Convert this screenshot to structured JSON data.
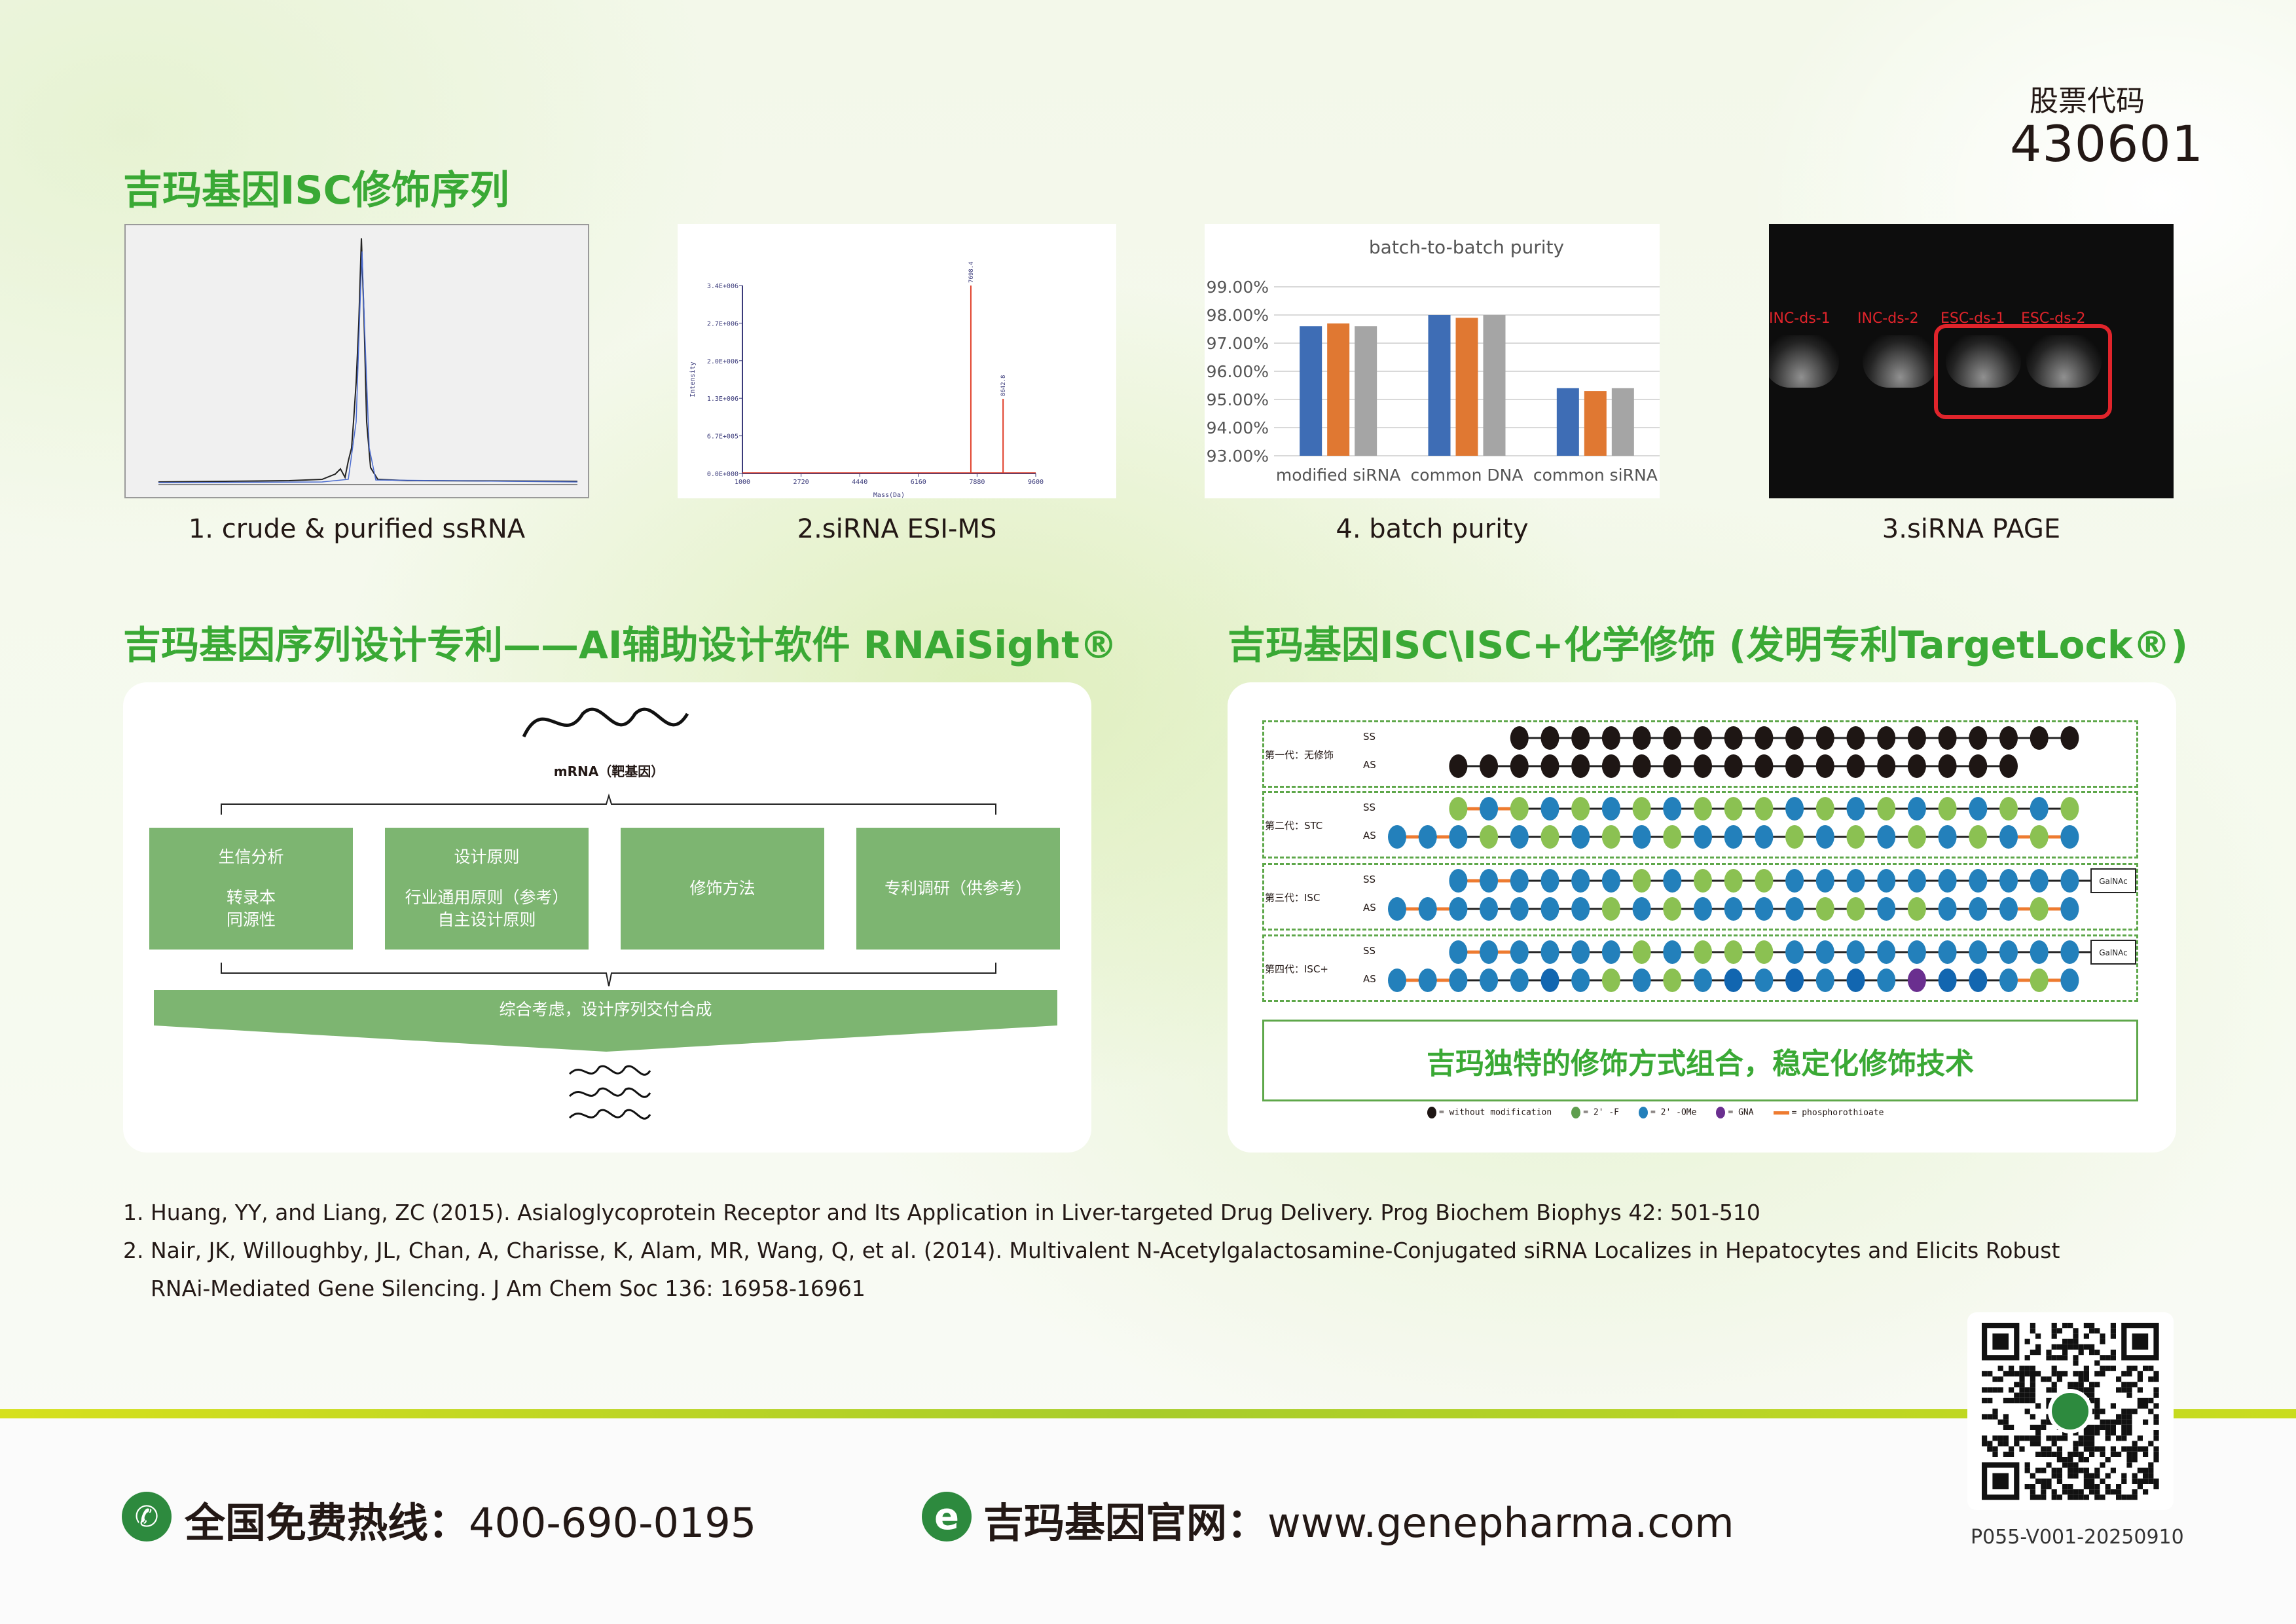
{
  "stock": {
    "label": "股票代码",
    "code": "430601"
  },
  "section1": {
    "title": "吉玛基因ISC修饰序列",
    "captions": [
      "1. crude & purified ssRNA",
      "2.siRNA ESI-MS",
      "4. batch purity",
      "3.siRNA PAGE"
    ]
  },
  "gel": {
    "labels": [
      "INC-ds-1",
      "INC-ds-2",
      "ESC-ds-1",
      "ESC-ds-2"
    ],
    "highlight_color": "#e0242b"
  },
  "chart_data": [
    {
      "type": "line",
      "title": "",
      "xlabel": "Mass(Da)",
      "ylabel": "Intensity",
      "xlim": [
        1000,
        9600
      ],
      "ylim": [
        0,
        3400000
      ],
      "x_ticks": [
        "1000",
        "2720",
        "4440",
        "6160",
        "7880",
        "9600"
      ],
      "y_ticks": [
        "0.0E+000",
        "6.7E+005",
        "1.3E+006",
        "2.0E+006",
        "2.7E+006",
        "3.4E+006"
      ],
      "peaks": [
        {
          "x": 7698.4,
          "y": 3400000,
          "label": "7698.4"
        },
        {
          "x": 8642.8,
          "y": 1350000,
          "label": "8642.8"
        }
      ],
      "color": "#e0402b"
    },
    {
      "type": "bar",
      "title": "batch-to-batch purity",
      "categories": [
        "modified siRNA",
        "common DNA",
        "common siRNA"
      ],
      "series": [
        {
          "values": [
            97.6,
            98.0,
            95.4
          ],
          "color": "#3e6db5"
        },
        {
          "values": [
            97.7,
            97.9,
            95.3
          ],
          "color": "#e07832"
        },
        {
          "values": [
            97.6,
            98.0,
            95.4
          ],
          "color": "#a5a5a5"
        }
      ],
      "ylim": [
        93,
        99
      ],
      "y_ticks": [
        "93.00%",
        "94.00%",
        "95.00%",
        "96.00%",
        "97.00%",
        "98.00%",
        "99.00%"
      ],
      "grid": true
    }
  ],
  "section2": {
    "left_title": "吉玛基因序列设计专利——AI辅助设计软件 RNAiSight®",
    "right_title": "吉玛基因ISC\\ISC+化学修饰 (发明专利TargetLock®)"
  },
  "flow": {
    "mrna_label": "mRNA（靶基因）",
    "boxes": [
      {
        "line1": "生信分析",
        "line2": "转录本",
        "line3": "同源性"
      },
      {
        "line1": "设计原则",
        "line2": "行业通用原则（参考）",
        "line3": "自主设计原则"
      },
      {
        "line1": "修饰方法",
        "line2": "",
        "line3": ""
      },
      {
        "line1": "专利调研（供参考）",
        "line2": "",
        "line3": ""
      }
    ],
    "funnel_label": "综合考虑，设计序列交付合成",
    "box_color": "#7db571"
  },
  "modification": {
    "colors": {
      "k": "#1e1614",
      "g": "#8bc152",
      "b": "#2380bb",
      "d": "#1266b0",
      "p": "#6a2f8f",
      "ps": "#ee7b30"
    },
    "strand_labels": {
      "ss": "SS",
      "as": "AS"
    },
    "galnac_label": "GalNAc",
    "generations": [
      {
        "label": "第一代：无修饰",
        "ss": {
          "start": 4,
          "seq": "kkkkkkkkkkkkkkkkkkk",
          "ps": [],
          "galnac": false
        },
        "as": {
          "start": 2,
          "seq": "kkkkkkkkkkkkkkkkkkk",
          "ps": []
        }
      },
      {
        "label": "第二代：STC",
        "ss": {
          "start": 2,
          "seq": "gbgbgbgbgggbgbgbgbgbg",
          "ps": [
            0,
            1
          ],
          "galnac": false
        },
        "as": {
          "start": 0,
          "seq": "bbbgbgbgbgbbbgbgbgbgbgb",
          "ps": [
            0,
            1,
            20,
            21
          ]
        }
      },
      {
        "label": "第三代：ISC",
        "ss": {
          "start": 2,
          "seq": "bbbbbbgbgggbbbbbbbbbb",
          "ps": [
            0,
            1
          ],
          "galnac": true
        },
        "as": {
          "start": 0,
          "seq": "bbbbbbbgbgbbbbggbgbbbgb",
          "ps": [
            0,
            1,
            20,
            21
          ]
        }
      },
      {
        "label": "第四代：ISC+",
        "ss": {
          "start": 2,
          "seq": "bbbbbbgbgggbbbbbbbbbb",
          "ps": [
            0,
            1
          ],
          "galnac": true
        },
        "as": {
          "start": 0,
          "seq": "bbbbbdbgbgbdbdbdbpddbgb",
          "ps": [
            0,
            1,
            20,
            21
          ]
        }
      }
    ],
    "slogan": "吉玛独特的修饰方式组合，稳定化修饰技术",
    "legend": [
      {
        "key": "k",
        "text": "= without modification"
      },
      {
        "key": "g2",
        "text": "= 2' -F"
      },
      {
        "key": "b",
        "text": "= 2' -OMe"
      },
      {
        "key": "p",
        "text": "= GNA"
      },
      {
        "key": "ps",
        "text": "= phosphorothioate"
      }
    ]
  },
  "references": [
    "1.  Huang, YY, and Liang, ZC (2015). Asialoglycoprotein Receptor and Its Application in Liver-targeted Drug Delivery. Prog Biochem Biophys 42: 501-510",
    "2.  Nair, JK, Willoughby, JL, Chan, A, Charisse, K, Alam, MR, Wang, Q, et al. (2014). Multivalent N-Acetylgalactosamine-Conjugated siRNA Localizes in Hepatocytes and Elicits Robust",
    "RNAi-Mediated Gene Silencing. J Am Chem Soc 136: 16958-16961"
  ],
  "footer": {
    "hotline_label": "全国免费热线：",
    "hotline": "400-690-0195",
    "website_label": "吉玛基因官网：",
    "website": "www.genepharma.com",
    "doc_code": "P055-V001-20250910",
    "brand_green": "#2d8a3e"
  }
}
